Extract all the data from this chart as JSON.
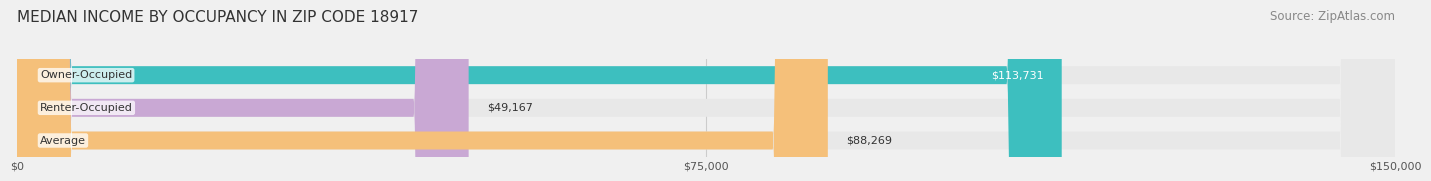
{
  "title": "MEDIAN INCOME BY OCCUPANCY IN ZIP CODE 18917",
  "source": "Source: ZipAtlas.com",
  "categories": [
    "Owner-Occupied",
    "Renter-Occupied",
    "Average"
  ],
  "values": [
    113731,
    49167,
    88269
  ],
  "bar_colors": [
    "#3dbfbf",
    "#c9a8d4",
    "#f5c07a"
  ],
  "label_colors": [
    "#ffffff",
    "#555555",
    "#555555"
  ],
  "value_labels": [
    "$113,731",
    "$49,167",
    "$88,269"
  ],
  "xlim": [
    0,
    150000
  ],
  "xticks": [
    0,
    75000,
    150000
  ],
  "xtick_labels": [
    "$0",
    "$75,000",
    "$150,000"
  ],
  "background_color": "#f0f0f0",
  "bar_bg_color": "#e8e8e8",
  "title_fontsize": 11,
  "source_fontsize": 8.5,
  "label_fontsize": 8,
  "value_fontsize": 8
}
